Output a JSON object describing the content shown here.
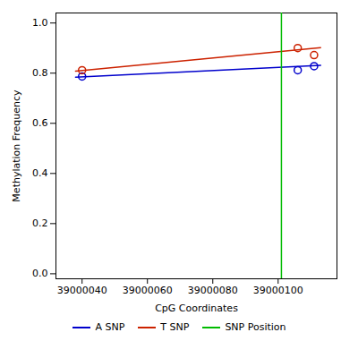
{
  "chart_data": {
    "type": "scatter",
    "xlabel": "CpG Coordinates",
    "ylabel": "Methylation Frequency",
    "xlim": [
      39000032,
      39000118
    ],
    "ylim": [
      -0.02,
      1.04
    ],
    "xticks": [
      39000040,
      39000060,
      39000080,
      39000100
    ],
    "yticks": [
      {
        "value": 0.0,
        "label": "0.0"
      },
      0.2,
      0.4,
      0.6,
      0.8,
      {
        "value": 1.0,
        "label": "1.0"
      }
    ],
    "legend": "bottom",
    "grid": false,
    "series": [
      {
        "name": "A SNP",
        "color": "#0000cc",
        "marker": "circle",
        "x": [
          39000040,
          39000106,
          39000111
        ],
        "values": [
          0.787,
          0.812,
          0.828
        ],
        "line_x": [
          39000038,
          39000113
        ],
        "line_values": [
          0.784,
          0.831
        ]
      },
      {
        "name": "T SNP",
        "color": "#cc2200",
        "marker": "circle",
        "x": [
          39000040,
          39000106,
          39000111
        ],
        "values": [
          0.812,
          0.9,
          0.872
        ],
        "line_x": [
          39000038,
          39000113
        ],
        "line_values": [
          0.808,
          0.902
        ]
      },
      {
        "name": "SNP Position",
        "type": "vline",
        "color": "#00bb00",
        "x": 39000101
      }
    ]
  }
}
